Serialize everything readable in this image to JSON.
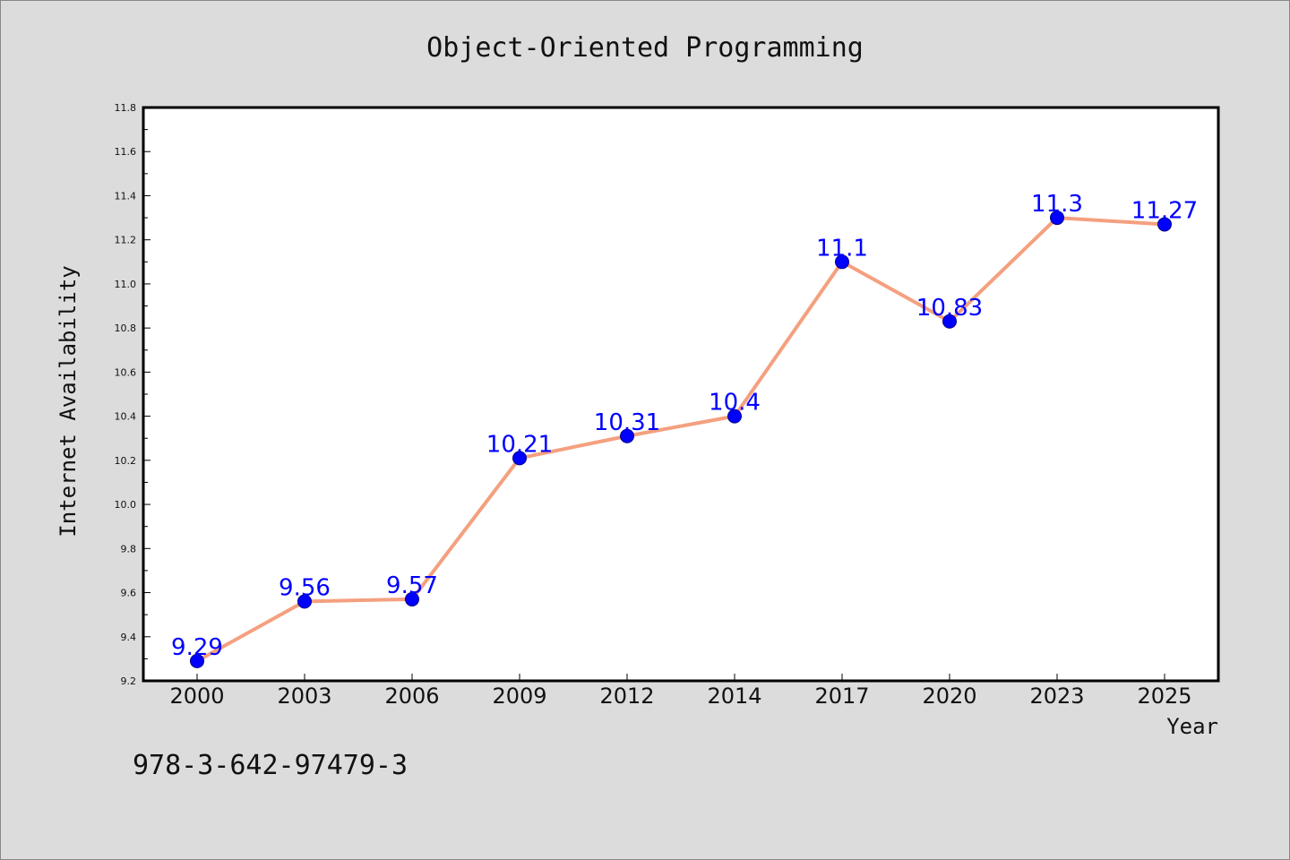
{
  "chart_data": {
    "type": "line",
    "title": "Object-Oriented Programming",
    "xlabel": "Year",
    "ylabel": "Internet Availability",
    "categories": [
      "2000",
      "2003",
      "2006",
      "2009",
      "2012",
      "2014",
      "2017",
      "2020",
      "2023",
      "2025"
    ],
    "series": [
      {
        "values": [
          9.29,
          9.56,
          9.57,
          10.21,
          10.31,
          10.4,
          11.1,
          10.83,
          11.3,
          11.27
        ],
        "data_labels": [
          "9.29",
          "9.56",
          "9.57",
          "10.21",
          "10.31",
          "10.4",
          "11.1",
          "10.83",
          "11.3",
          "11.27"
        ]
      }
    ],
    "ylim": [
      9.2,
      11.8
    ],
    "yticks": [
      "9.2",
      "9.4",
      "9.6",
      "9.8",
      "10.0",
      "10.2",
      "10.4",
      "10.6",
      "10.8",
      "11.0",
      "11.2",
      "11.4",
      "11.6",
      "11.8"
    ],
    "grid": false,
    "line_color": "#f4a07f",
    "marker_color": "#0000ff",
    "label_color": "#0000ff"
  },
  "footer": {
    "isbn": "978-3-642-97479-3"
  },
  "colors": {
    "background": "#dcdcdc",
    "plot_background": "#ffffff"
  }
}
